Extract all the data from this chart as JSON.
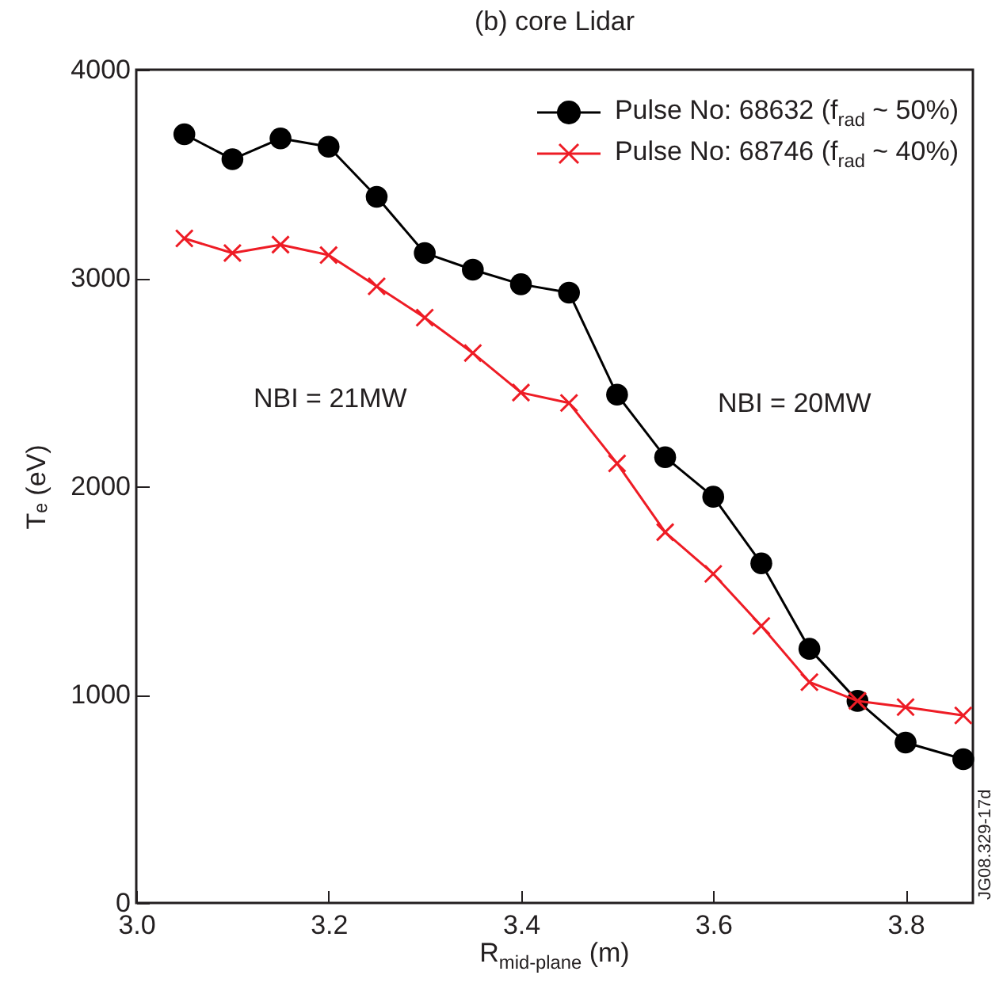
{
  "chart_data": {
    "type": "line",
    "title": "(b) core Lidar",
    "xlabel": "R$_{mid-plane}$ (m)",
    "ylabel": "Tₑ (eV)",
    "annotations": [
      "NBI = 21MW",
      "NBI = 20MW",
      "JG08.329-17d"
    ],
    "x": [
      3.05,
      3.1,
      3.15,
      3.2,
      3.25,
      3.3,
      3.35,
      3.4,
      3.45,
      3.5,
      3.55,
      3.6,
      3.65,
      3.7,
      3.75,
      3.8,
      3.86
    ],
    "series": [
      {
        "name": "Pulse No: 68632 (f$_{rad}$ ~ 50%)",
        "color": "#000000",
        "marker": "circle",
        "values": [
          3690,
          3570,
          3670,
          3630,
          3390,
          3120,
          3040,
          2970,
          2930,
          2440,
          2140,
          1950,
          1630,
          1220,
          970,
          770,
          690
        ]
      },
      {
        "name": "Pulse No: 68746 (f$_{rad}$ ~ 40%)",
        "color": "#ee1c25",
        "marker": "cross",
        "values": [
          3190,
          3120,
          3160,
          3110,
          2960,
          2810,
          2640,
          2450,
          2400,
          2110,
          1780,
          1580,
          1330,
          1060,
          970,
          940,
          900
        ]
      }
    ],
    "xlim": [
      3.0,
      3.87
    ],
    "xticks": [
      {
        "value": 3.0,
        "label": "3.0"
      },
      {
        "value": 3.2,
        "label": "3.2"
      },
      {
        "value": 3.4,
        "label": "3.4"
      },
      {
        "value": 3.6,
        "label": "3.6"
      },
      {
        "value": 3.8,
        "label": "3.8"
      }
    ],
    "ylim": [
      0,
      4000
    ],
    "yticks": [
      0,
      1000,
      2000,
      3000,
      4000
    ],
    "grid": false,
    "legend": "top right",
    "line_style": "solid"
  }
}
